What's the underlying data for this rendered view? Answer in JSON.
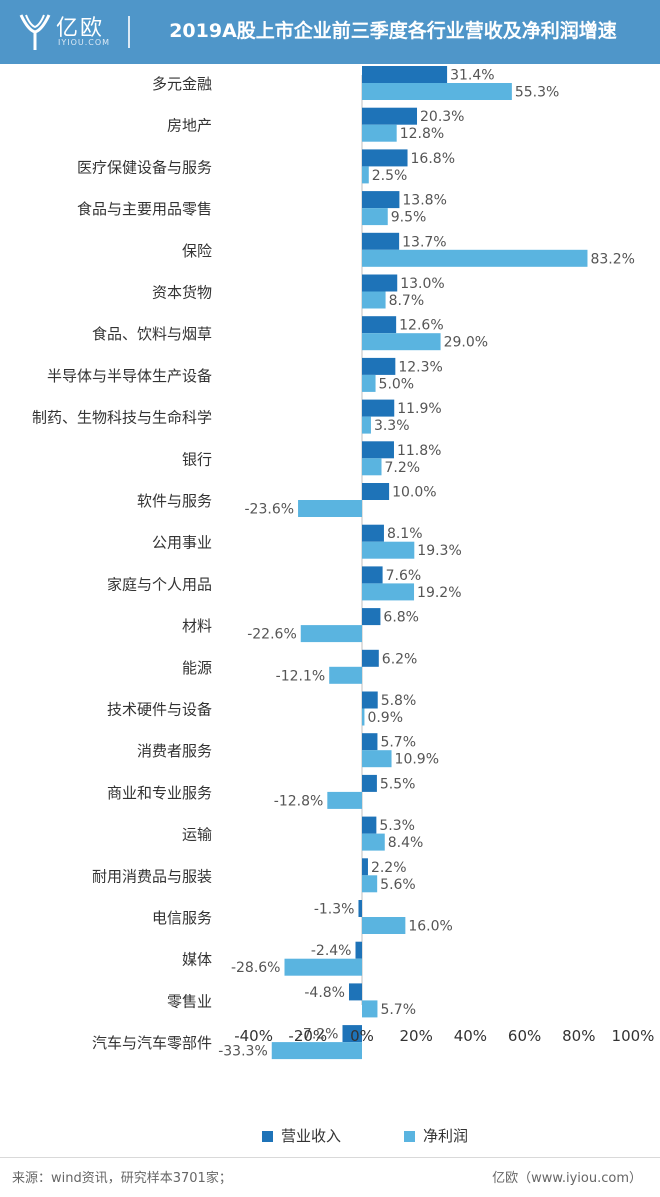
{
  "header": {
    "logo_text": "亿欧",
    "logo_sub": "IYIOU.COM",
    "title": "2019A股上市企业前三季度各行业营收及净利润增速"
  },
  "colors": {
    "header_bg": "#4f96c9",
    "revenue": "#1e73b8",
    "profit": "#5ab4e0"
  },
  "footer": {
    "source": "来源：wind资讯，研究样本3701家；",
    "site": "亿欧（www.iyiou.com）"
  },
  "chart_data": {
    "type": "bar",
    "orientation": "horizontal",
    "categories": [
      "多元金融",
      "房地产",
      "医疗保健设备与服务",
      "食品与主要用品零售",
      "保险",
      "资本货物",
      "食品、饮料与烟草",
      "半导体与半导体生产设备",
      "制药、生物科技与生命科学",
      "银行",
      "软件与服务",
      "公用事业",
      "家庭与个人用品",
      "材料",
      "能源",
      "技术硬件与设备",
      "消费者服务",
      "商业和专业服务",
      "运输",
      "耐用消费品与服装",
      "电信服务",
      "媒体",
      "零售业",
      "汽车与汽车零部件"
    ],
    "series": [
      {
        "name": "营业收入",
        "values": [
          31.4,
          20.3,
          16.8,
          13.8,
          13.7,
          13.0,
          12.6,
          12.3,
          11.9,
          11.8,
          10.0,
          8.1,
          7.6,
          6.8,
          6.2,
          5.8,
          5.7,
          5.5,
          5.3,
          2.2,
          -1.3,
          -2.4,
          -4.8,
          -7.2
        ]
      },
      {
        "name": "净利润",
        "values": [
          55.3,
          12.8,
          2.5,
          9.5,
          83.2,
          8.7,
          29.0,
          5.0,
          3.3,
          7.2,
          -23.6,
          19.3,
          19.2,
          -22.6,
          -12.1,
          0.9,
          10.9,
          -12.8,
          8.4,
          5.6,
          16.0,
          -28.6,
          5.7,
          -33.3
        ]
      }
    ],
    "value_unit": "%",
    "xlim": [
      -40,
      100
    ],
    "xticks": [
      "-40%",
      "-20%",
      "0%",
      "20%",
      "40%",
      "60%",
      "80%",
      "100%"
    ],
    "grid": false,
    "legend_position": "bottom"
  }
}
